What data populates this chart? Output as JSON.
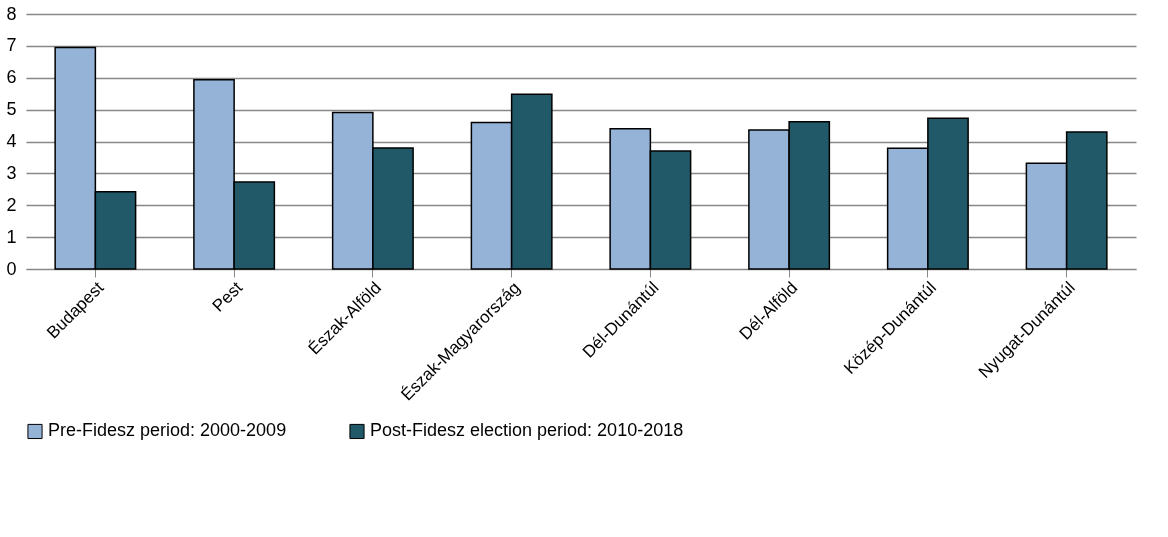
{
  "chart_data": {
    "type": "bar",
    "categories": [
      "Budapest",
      "Pest",
      "Észak-Alföld",
      "Észak-Magyarország",
      "Dél-Dunántúl",
      "Dél-Alföld",
      "Közép-Dunántúl",
      "Nyugat-Dunántúl"
    ],
    "series": [
      {
        "name": "Pre-Fidesz period: 2000-2009",
        "color": "#95b3d7",
        "values": [
          6.95,
          5.94,
          4.91,
          4.6,
          4.4,
          4.36,
          3.79,
          3.32
        ]
      },
      {
        "name": "Post-Fidesz election period: 2010-2018",
        "color": "#215968",
        "values": [
          2.42,
          2.73,
          3.8,
          5.48,
          3.7,
          4.62,
          4.73,
          4.3
        ]
      }
    ],
    "ylim": [
      0,
      8
    ],
    "yticks": [
      0,
      1,
      2,
      3,
      4,
      5,
      6,
      7,
      8
    ],
    "grid": "y",
    "legend": "bottom"
  }
}
